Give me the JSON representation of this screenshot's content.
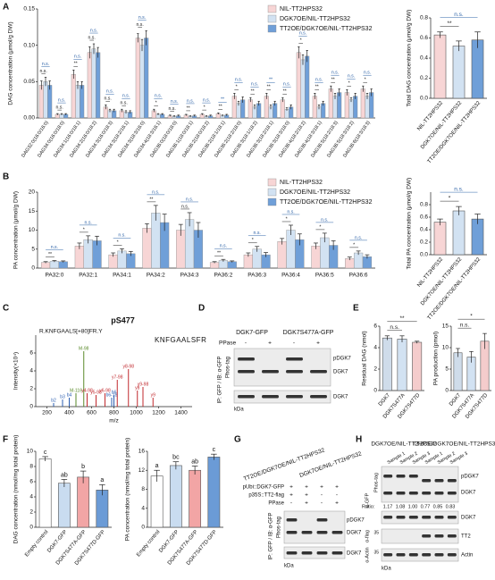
{
  "panel_labels": [
    "A",
    "B",
    "C",
    "D",
    "E",
    "F",
    "G",
    "H"
  ],
  "chart_data": [
    {
      "type": "grouped_bar",
      "ylabel": "DAG concentration (μmol/g DW)",
      "categories": [
        "DAG32:0(16:0/16:0)",
        "DAG34:0(16:0/18:0)",
        "DAG34:1(16:0/18:1)",
        "DAG34:2(16:0/18:2)",
        "DAG34:3(16:0/18:3)",
        "DAG34:3(18:2/16:1)",
        "DAG34:3(18:3/16:0)",
        "DAG34:4(18:3/16:1)",
        "DAG36:0(18:0/18:0)",
        "DAG36:1(18:0/18:1)",
        "DAG36:2(18:0/18:2)",
        "DAG36:2(18:1/18:1)",
        "DAG36:2(18:2/18:0)",
        "DAG36:3(18:1/18:2)",
        "DAG36:3(18:2/18:1)",
        "DAG36:3(18:3/18:0)",
        "DAG36:4(18:2/18:2)",
        "DAG36:4(18:3/18:1)",
        "DAG36:5(18:2/18:3)",
        "DAG36:5(18:3/18:2)",
        "DAG36:6(18:3/18:3)"
      ],
      "series": [
        {
          "name": "NIL-TT2HPS32",
          "color": "#f7d5d5",
          "values": [
            0.045,
            0.005,
            0.06,
            0.09,
            0.015,
            0.01,
            0.11,
            0.01,
            0.003,
            0.004,
            0.005,
            0.006,
            0.03,
            0.025,
            0.03,
            0.025,
            0.09,
            0.03,
            0.04,
            0.035,
            0.04
          ],
          "errors": [
            0.006,
            0.001,
            0.006,
            0.008,
            0.003,
            0.002,
            0.006,
            0.002,
            0.001,
            0.001,
            0.001,
            0.001,
            0.004,
            0.003,
            0.004,
            0.003,
            0.008,
            0.004,
            0.004,
            0.004,
            0.004
          ]
        },
        {
          "name": "DGK7OE/NIL-TT2HPS32",
          "color": "#d2e2f2",
          "values": [
            0.05,
            0.005,
            0.045,
            0.095,
            0.01,
            0.008,
            0.1,
            0.005,
            0.002,
            0.002,
            0.002,
            0.003,
            0.02,
            0.015,
            0.015,
            0.012,
            0.08,
            0.015,
            0.03,
            0.025,
            0.03
          ],
          "errors": [
            0.006,
            0.001,
            0.005,
            0.007,
            0.002,
            0.002,
            0.008,
            0.001,
            0.001,
            0.001,
            0.001,
            0.001,
            0.003,
            0.003,
            0.003,
            0.002,
            0.007,
            0.003,
            0.004,
            0.003,
            0.004
          ]
        },
        {
          "name": "TT2OE/DGK7OE/NIL-TT2HPS32",
          "color": "#6f9fd8",
          "values": [
            0.045,
            0.005,
            0.045,
            0.09,
            0.01,
            0.008,
            0.11,
            0.005,
            0.003,
            0.003,
            0.003,
            0.004,
            0.025,
            0.02,
            0.02,
            0.015,
            0.085,
            0.02,
            0.035,
            0.03,
            0.035
          ],
          "errors": [
            0.006,
            0.001,
            0.005,
            0.007,
            0.002,
            0.002,
            0.01,
            0.001,
            0.001,
            0.001,
            0.001,
            0.001,
            0.004,
            0.003,
            0.003,
            0.003,
            0.008,
            0.003,
            0.005,
            0.004,
            0.005
          ]
        }
      ],
      "comparison_pairs": [
        [
          0,
          1
        ],
        [
          0,
          2
        ]
      ],
      "comparisons": [
        [
          "n.s.",
          "n.s."
        ],
        [
          "n.s.",
          "n.s."
        ],
        [
          "**",
          "n.s."
        ],
        [
          "n.s.",
          "n.s."
        ],
        [
          "n.s.",
          "n.s."
        ],
        [
          "n.s.",
          "n.s."
        ],
        [
          "n.s.",
          "n.s."
        ],
        [
          "*",
          "n.s."
        ],
        [
          "n.s.",
          "n.s."
        ],
        [
          "**",
          "n.s."
        ],
        [
          "*",
          "n.s."
        ],
        [
          "**",
          "**"
        ],
        [
          "*",
          "n.s."
        ],
        [
          "**",
          "n.s."
        ],
        [
          "**",
          "**"
        ],
        [
          "**",
          "n.s."
        ],
        [
          "*",
          "n.s."
        ],
        [
          "**",
          "n.s."
        ],
        [
          "**",
          "n.s."
        ],
        [
          "*",
          "n.s."
        ],
        [
          "*",
          "n.s."
        ]
      ],
      "ylim": [
        0,
        0.15
      ],
      "yticks": [
        {
          "value": 0,
          "label": "0.00"
        },
        {
          "value": 0.05,
          "label": "0.05"
        },
        {
          "value": 0.1,
          "label": "0.10"
        },
        {
          "value": 0.15,
          "label": "0.15"
        }
      ]
    },
    {
      "type": "bar",
      "ylabel": "Total DAG concentration (μmol/g DW)",
      "categories": [
        "NIL-TT2HPS32",
        "DGK7OE/NIL-TT2HPS32",
        "TT2OE/DGK7OE/NIL-TT2HPS32"
      ],
      "values": [
        0.63,
        0.52,
        0.58
      ],
      "errors": [
        0.03,
        0.05,
        0.08
      ],
      "colors": [
        "#f7d5d5",
        "#d2e2f2",
        "#6f9fd8"
      ],
      "comparisons": [
        {
          "text": "**",
          "pair": [
            0,
            1
          ]
        },
        {
          "text": "n.s.",
          "pair": [
            0,
            2
          ]
        }
      ],
      "ylim": [
        0,
        0.8
      ],
      "yticks": [
        {
          "value": 0,
          "label": "0.0"
        },
        0.2,
        0.4,
        0.6,
        0.8
      ]
    },
    {
      "type": "grouped_bar",
      "ylabel": "PA concentration (μmol/g DW)",
      "categories": [
        "PA32:0",
        "PA32:1",
        "PA34:1",
        "PA34:2",
        "PA34:3",
        "PA36:2",
        "PA36:3",
        "PA36:4",
        "PA36:5",
        "PA36:6"
      ],
      "series": [
        {
          "name": "NIL-TT2HPS32",
          "color": "#f7d5d5",
          "values": [
            1.5,
            5.8,
            3.5,
            10.5,
            10,
            1.5,
            3.5,
            7,
            5.8,
            2.5
          ],
          "errors": [
            0.2,
            0.8,
            0.5,
            1.2,
            1.5,
            0.2,
            0.5,
            0.8,
            0.8,
            0.4
          ]
        },
        {
          "name": "DGK7OE/NIL-TT2HPS32",
          "color": "#d2e2f2",
          "values": [
            1.8,
            7.5,
            4.5,
            14.5,
            12.8,
            2,
            5,
            10,
            8,
            4
          ],
          "errors": [
            0.2,
            1,
            0.6,
            2,
            1.8,
            0.3,
            0.7,
            1.3,
            1.2,
            0.5
          ]
        },
        {
          "name": "TT2OE/DGK7OE/NIL-TT2HPS32",
          "color": "#6f9fd8",
          "values": [
            1.7,
            7.2,
            3.8,
            12,
            10,
            1.7,
            3.5,
            7.5,
            6,
            3
          ],
          "errors": [
            0.2,
            1.2,
            0.6,
            2.2,
            2,
            0.2,
            0.6,
            1.5,
            1.2,
            0.5
          ]
        }
      ],
      "comparison_pairs": [
        [
          0,
          1
        ],
        [
          0,
          2
        ]
      ],
      "comparisons": [
        [
          "**",
          "n.s."
        ],
        [
          "*",
          "n.s."
        ],
        [
          "*",
          "n.s."
        ],
        [
          "**",
          "n.s."
        ],
        [
          "n.s.",
          "n.s."
        ],
        [
          "**",
          "n.s."
        ],
        [
          "*",
          "n.s."
        ],
        [
          "*",
          "n.s."
        ],
        [
          "*",
          "n.s."
        ],
        [
          "*",
          "n.s."
        ]
      ],
      "ylim": [
        0,
        20
      ],
      "yticks": [
        0,
        5,
        10,
        15,
        20
      ]
    },
    {
      "type": "bar",
      "ylabel": "Total PA concentration (μmol/g DW)",
      "categories": [
        "NIL-TT2HPS32",
        "DGK7OE/NIL-TT2HPS32",
        "TT2OE/DGK7OE/NIL-TT2HPS32"
      ],
      "values": [
        0.52,
        0.7,
        0.57
      ],
      "errors": [
        0.05,
        0.07,
        0.08
      ],
      "colors": [
        "#f7d5d5",
        "#d2e2f2",
        "#6f9fd8"
      ],
      "comparisons": [
        {
          "text": "*",
          "pair": [
            0,
            1
          ]
        },
        {
          "text": "n.s.",
          "pair": [
            0,
            2
          ]
        }
      ],
      "ylim": [
        0,
        1
      ],
      "yticks": [
        {
          "value": 0,
          "label": "0.0"
        },
        0.2,
        0.4,
        0.6,
        0.8
      ]
    },
    {
      "type": "spectrum",
      "title": "pS477",
      "peptide": "R.KNFGAALS[+80]FR.Y",
      "sequence": "KNFGAALSFR",
      "ylabel": "Intensity(×10⁴)",
      "xlabel": "m/z",
      "peaks": [
        {
          "mz": 260,
          "intensity": 0.4,
          "label": "b2",
          "color": "#2a5db0"
        },
        {
          "mz": 340,
          "intensity": 0.8,
          "label": "b3",
          "color": "#2a5db0"
        },
        {
          "mz": 400,
          "intensity": 1.0,
          "label": "b4",
          "color": "#2a5db0"
        },
        {
          "mz": 460,
          "intensity": 1.5,
          "label": "M-116",
          "color": "#5a8a2a"
        },
        {
          "mz": 530,
          "intensity": 6.2,
          "label": "M-98",
          "color": "#5a8a2a"
        },
        {
          "mz": 560,
          "intensity": 1.5,
          "label": "y4-98",
          "color": "#c0282d"
        },
        {
          "mz": 640,
          "intensity": 1.3,
          "label": "y5-98",
          "color": "#c0282d"
        },
        {
          "mz": 720,
          "intensity": 1.5,
          "label": "y6-98",
          "color": "#c0282d"
        },
        {
          "mz": 780,
          "intensity": 1.0,
          "label": "b6-18",
          "color": "#2a5db0"
        },
        {
          "mz": 800,
          "intensity": 1.3,
          "label": "b6",
          "color": "#2a5db0"
        },
        {
          "mz": 830,
          "intensity": 3.0,
          "label": "y7-98",
          "color": "#c0282d"
        },
        {
          "mz": 930,
          "intensity": 4.2,
          "label": "y8-98",
          "color": "#c0282d"
        },
        {
          "mz": 1010,
          "intensity": 1.8,
          "label": "y8",
          "color": "#c0282d"
        },
        {
          "mz": 1060,
          "intensity": 2.2,
          "label": "y9-98",
          "color": "#c0282d"
        },
        {
          "mz": 1150,
          "intensity": 1.0,
          "label": "y9",
          "color": "#c0282d"
        }
      ],
      "xlim": [
        100,
        1500
      ],
      "xticks": [
        200,
        400,
        600,
        800,
        1000,
        1200,
        1400
      ],
      "ylim": [
        0,
        8
      ],
      "yticks": [
        0,
        2,
        4,
        6
      ]
    },
    {
      "type": "bar",
      "ylabel": "Residual DAG (nmol)",
      "categories": [
        "DGK7",
        "DGK7S477A",
        "DGK7S477D"
      ],
      "values": [
        4.9,
        4.8,
        4.5
      ],
      "errors": [
        0.2,
        0.3,
        0.1
      ],
      "colors": [
        "#cfdcea",
        "#d2e2f2",
        "#f4cccc"
      ],
      "comparisons": [
        {
          "text": "n.s.",
          "pair": [
            0,
            1
          ]
        },
        {
          "text": "**",
          "pair": [
            0,
            2
          ]
        }
      ],
      "ylim": [
        0,
        6
      ],
      "yticks": [
        0,
        2,
        4,
        6
      ]
    },
    {
      "type": "bar",
      "ylabel": "PA production (pmol)",
      "categories": [
        "DGK7",
        "DGK7S477A",
        "DGK7S477D"
      ],
      "values": [
        8.8,
        7.8,
        11.5
      ],
      "errors": [
        1,
        1.3,
        1.8
      ],
      "colors": [
        "#cfdcea",
        "#d2e2f2",
        "#f4cccc"
      ],
      "comparisons": [
        {
          "text": "n.s.",
          "pair": [
            0,
            1
          ]
        },
        {
          "text": "*",
          "pair": [
            0,
            2
          ]
        }
      ],
      "ylim": [
        0,
        15
      ],
      "yticks": [
        0,
        5,
        10,
        15
      ]
    },
    {
      "type": "bar",
      "ylabel": "DAG concentration (nmol/mg total protein)",
      "categories": [
        "Empty control",
        "DGK7-GFP",
        "DGK7S477A-GFP",
        "DGK7S477D-GFP"
      ],
      "values": [
        9,
        5.8,
        6.6,
        4.9
      ],
      "errors": [
        0.3,
        0.5,
        0.8,
        0.7
      ],
      "colors": [
        "#ffffff",
        "#c9dcf0",
        "#f2a5a5",
        "#6b9bd6"
      ],
      "letters": [
        "c",
        "ab",
        "b",
        "a"
      ],
      "ylim": [
        0,
        10
      ],
      "yticks": [
        0,
        2,
        4,
        6,
        8,
        10
      ]
    },
    {
      "type": "bar",
      "ylabel": "PA concentration (nmol/mg total protein)",
      "categories": [
        "Empty control",
        "DGK7-GFP",
        "DGK7S477A-GFP",
        "DGK7S477D-GFP"
      ],
      "values": [
        10.8,
        13,
        12,
        14.8
      ],
      "errors": [
        1.2,
        0.8,
        0.9,
        0.6
      ],
      "colors": [
        "#ffffff",
        "#c9dcf0",
        "#f2a5a5",
        "#6b9bd6"
      ],
      "letters": [
        "a",
        "bc",
        "ab",
        "c"
      ],
      "ylim": [
        0,
        16
      ],
      "yticks": [
        0,
        4,
        8,
        12,
        16
      ]
    }
  ],
  "blot_D": {
    "lanes": [
      "DGK7-GFP",
      "DGK7S477A-GFP"
    ],
    "treatment": "PPase",
    "signs": [
      "-",
      "+",
      "-",
      "+"
    ],
    "bands": [
      "pDGK7",
      "DGK7",
      "DGK7"
    ],
    "side": [
      "Phos-tag",
      "IP: GFP / IB: α-GFP"
    ],
    "unit": "kDa"
  },
  "blot_G": {
    "groups": [
      "TT2OE/DGK7OE/NIL-TT2HPS32",
      "DGK7OE/NIL-TT2HPS32"
    ],
    "rows": [
      {
        "name": "pUbi::DGK7-GFP",
        "signs": [
          "+",
          "+",
          "+",
          "+"
        ]
      },
      {
        "name": "p35S::TT2-flag",
        "signs": [
          "+",
          "+",
          "-",
          "-"
        ]
      },
      {
        "name": "PPase",
        "signs": [
          "-",
          "+",
          "-",
          "+"
        ]
      }
    ],
    "bands": [
      "pDGK7",
      "DGK7",
      "DGK7"
    ],
    "side": [
      "Phos-tag",
      "IP: GFP / IB: α-GFP"
    ],
    "unit": "kDa"
  },
  "blot_H": {
    "groups": [
      "DGK7OE/NIL-TT2HPS32",
      "TT2OE/DGK7OE/NIL-TT2HPS32"
    ],
    "samples": [
      "Sample 1",
      "Sample 2",
      "Sample 3",
      "Sample 1",
      "Sample 2",
      "Sample 3"
    ],
    "bands": [
      "pDGK7",
      "DGK7",
      "DGK7",
      "TT2",
      "Actin"
    ],
    "antibodies": [
      "Phos-tag",
      "α-GFP",
      "α-flag",
      "α-Actin"
    ],
    "ratio_label": "Ratio:",
    "ratios": [
      "1.17",
      "1.08",
      "1.00",
      "0.77",
      "0.85",
      "0.83"
    ],
    "unit": "kDa",
    "markers": [
      "35",
      "35"
    ]
  }
}
